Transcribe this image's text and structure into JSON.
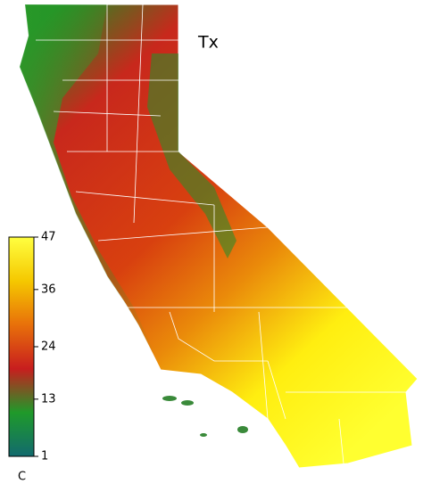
{
  "title": "Tx",
  "colorbar": {
    "lim": [
      1,
      47
    ],
    "ticks": [
      47,
      36,
      24,
      13,
      1
    ],
    "unit": "C",
    "colors": [
      "#126a6e",
      "#1f9a2a",
      "#c81e1e",
      "#e8700a",
      "#f5c800",
      "#ffff40"
    ]
  }
}
